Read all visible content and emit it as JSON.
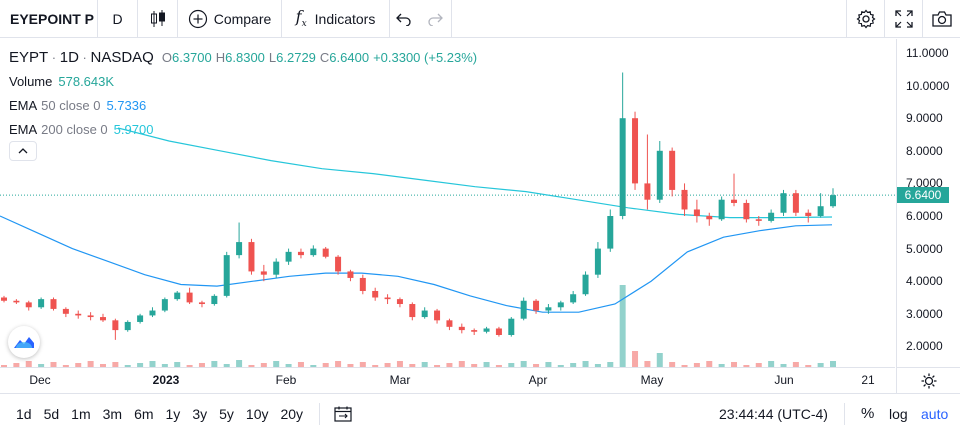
{
  "toolbar": {
    "symbol": "EYEPOINT P",
    "interval": "D",
    "compare_label": "Compare",
    "indicators_label": "Indicators"
  },
  "legend": {
    "symbol": "EYPT",
    "interval": "1D",
    "exchange": "NASDAQ",
    "o_label": "O",
    "o_value": "6.3700",
    "h_label": "H",
    "h_value": "6.8300",
    "l_label": "L",
    "l_value": "6.2729",
    "c_label": "C",
    "c_value": "6.6400",
    "change": "+0.3300 (+5.23%)",
    "volume_label": "Volume",
    "volume_value": "578.643K",
    "ema50_label": "EMA",
    "ema50_params": "50 close 0",
    "ema50_value": "5.7336",
    "ema200_label": "EMA",
    "ema200_params": "200 close 0",
    "ema200_value": "5.9700"
  },
  "price_axis": {
    "ticks": [
      "11.0000",
      "10.0000",
      "9.0000",
      "8.0000",
      "7.0000",
      "6.0000",
      "5.0000",
      "4.0000",
      "3.0000",
      "2.0000"
    ],
    "last_price": "6.6400"
  },
  "time_axis": {
    "ticks": [
      "Dec",
      "2023",
      "Feb",
      "Mar",
      "Apr",
      "May",
      "Jun",
      "21"
    ]
  },
  "bottom_bar": {
    "ranges": [
      "1d",
      "5d",
      "1m",
      "3m",
      "6m",
      "1y",
      "3y",
      "5y",
      "10y",
      "20y"
    ],
    "clock": "23:44:44 (UTC-4)",
    "percent_label": "%",
    "log_label": "log",
    "auto_label": "auto"
  },
  "colors": {
    "up": "#26a69a",
    "down": "#ef5350",
    "ema50": "#2196f3",
    "ema200": "#26c6da",
    "accent": "#2962ff"
  },
  "chart_data": {
    "type": "candlestick",
    "y_axis_range": [
      1.5,
      11.5
    ],
    "last_price": 6.64,
    "candles_ohlc_sampled": [
      [
        3.5,
        3.55,
        3.35,
        3.4
      ],
      [
        3.4,
        3.45,
        3.3,
        3.35
      ],
      [
        3.35,
        3.4,
        3.1,
        3.2
      ],
      [
        3.2,
        3.5,
        3.15,
        3.45
      ],
      [
        3.45,
        3.5,
        3.1,
        3.15
      ],
      [
        3.15,
        3.2,
        2.9,
        3.0
      ],
      [
        3.0,
        3.1,
        2.85,
        2.95
      ],
      [
        2.95,
        3.05,
        2.8,
        2.9
      ],
      [
        2.9,
        3.0,
        2.75,
        2.8
      ],
      [
        2.8,
        2.85,
        2.2,
        2.5
      ],
      [
        2.5,
        2.8,
        2.45,
        2.75
      ],
      [
        2.75,
        3.0,
        2.7,
        2.95
      ],
      [
        2.95,
        3.2,
        2.9,
        3.1
      ],
      [
        3.1,
        3.5,
        3.05,
        3.45
      ],
      [
        3.45,
        3.7,
        3.4,
        3.65
      ],
      [
        3.65,
        3.8,
        3.3,
        3.35
      ],
      [
        3.35,
        3.4,
        3.2,
        3.3
      ],
      [
        3.3,
        3.6,
        3.25,
        3.55
      ],
      [
        3.55,
        4.9,
        3.5,
        4.8
      ],
      [
        4.8,
        5.8,
        4.7,
        5.2
      ],
      [
        5.2,
        5.3,
        4.2,
        4.3
      ],
      [
        4.3,
        4.5,
        4.0,
        4.2
      ],
      [
        4.2,
        4.7,
        4.1,
        4.6
      ],
      [
        4.6,
        5.0,
        4.5,
        4.9
      ],
      [
        4.9,
        5.0,
        4.7,
        4.8
      ],
      [
        4.8,
        5.1,
        4.75,
        5.0
      ],
      [
        5.0,
        5.05,
        4.7,
        4.75
      ],
      [
        4.75,
        4.8,
        4.2,
        4.3
      ],
      [
        4.3,
        4.35,
        4.0,
        4.1
      ],
      [
        4.1,
        4.2,
        3.6,
        3.7
      ],
      [
        3.7,
        3.8,
        3.4,
        3.5
      ],
      [
        3.5,
        3.6,
        3.3,
        3.45
      ],
      [
        3.45,
        3.5,
        3.2,
        3.3
      ],
      [
        3.3,
        3.35,
        2.8,
        2.9
      ],
      [
        2.9,
        3.2,
        2.85,
        3.1
      ],
      [
        3.1,
        3.15,
        2.7,
        2.8
      ],
      [
        2.8,
        2.85,
        2.5,
        2.6
      ],
      [
        2.6,
        2.7,
        2.4,
        2.5
      ],
      [
        2.5,
        2.55,
        2.35,
        2.45
      ],
      [
        2.45,
        2.6,
        2.4,
        2.55
      ],
      [
        2.55,
        2.6,
        2.3,
        2.35
      ],
      [
        2.35,
        2.9,
        2.3,
        2.85
      ],
      [
        2.85,
        3.5,
        2.8,
        3.4
      ],
      [
        3.4,
        3.45,
        3.0,
        3.1
      ],
      [
        3.1,
        3.3,
        3.0,
        3.2
      ],
      [
        3.2,
        3.4,
        3.1,
        3.35
      ],
      [
        3.35,
        3.7,
        3.3,
        3.6
      ],
      [
        3.6,
        4.3,
        3.55,
        4.2
      ],
      [
        4.2,
        5.2,
        4.1,
        5.0
      ],
      [
        5.0,
        6.2,
        4.9,
        6.0
      ],
      [
        6.0,
        10.4,
        5.9,
        9.0
      ],
      [
        9.0,
        9.2,
        6.8,
        7.0
      ],
      [
        7.0,
        8.5,
        6.2,
        6.5
      ],
      [
        6.5,
        8.3,
        6.4,
        8.0
      ],
      [
        8.0,
        8.1,
        6.6,
        6.8
      ],
      [
        6.8,
        7.0,
        6.0,
        6.2
      ],
      [
        6.2,
        6.5,
        5.8,
        6.0
      ],
      [
        6.0,
        6.1,
        5.7,
        5.9
      ],
      [
        5.9,
        6.6,
        5.85,
        6.5
      ],
      [
        6.5,
        7.3,
        6.3,
        6.4
      ],
      [
        6.4,
        6.5,
        5.8,
        5.9
      ],
      [
        5.9,
        6.0,
        5.7,
        5.85
      ],
      [
        5.85,
        6.2,
        5.8,
        6.1
      ],
      [
        6.1,
        6.8,
        6.0,
        6.7
      ],
      [
        6.7,
        6.8,
        6.0,
        6.1
      ],
      [
        6.1,
        6.2,
        5.8,
        6.0
      ],
      [
        6.0,
        6.7,
        5.95,
        6.3
      ],
      [
        6.3,
        6.85,
        6.25,
        6.64
      ]
    ],
    "ema50_sampled": [
      6.0,
      5.5,
      5.0,
      4.6,
      4.2,
      3.9,
      3.85,
      4.0,
      4.15,
      4.25,
      4.25,
      4.15,
      3.9,
      3.55,
      3.25,
      3.05,
      3.05,
      3.3,
      4.0,
      4.9,
      5.35,
      5.55,
      5.7,
      5.73
    ],
    "ema200_sampled": [
      8.7,
      8.3,
      8.0,
      7.7,
      7.45,
      7.3,
      7.1,
      6.9,
      6.75,
      6.5,
      6.25,
      6.05,
      5.95,
      5.95,
      5.97
    ]
  }
}
